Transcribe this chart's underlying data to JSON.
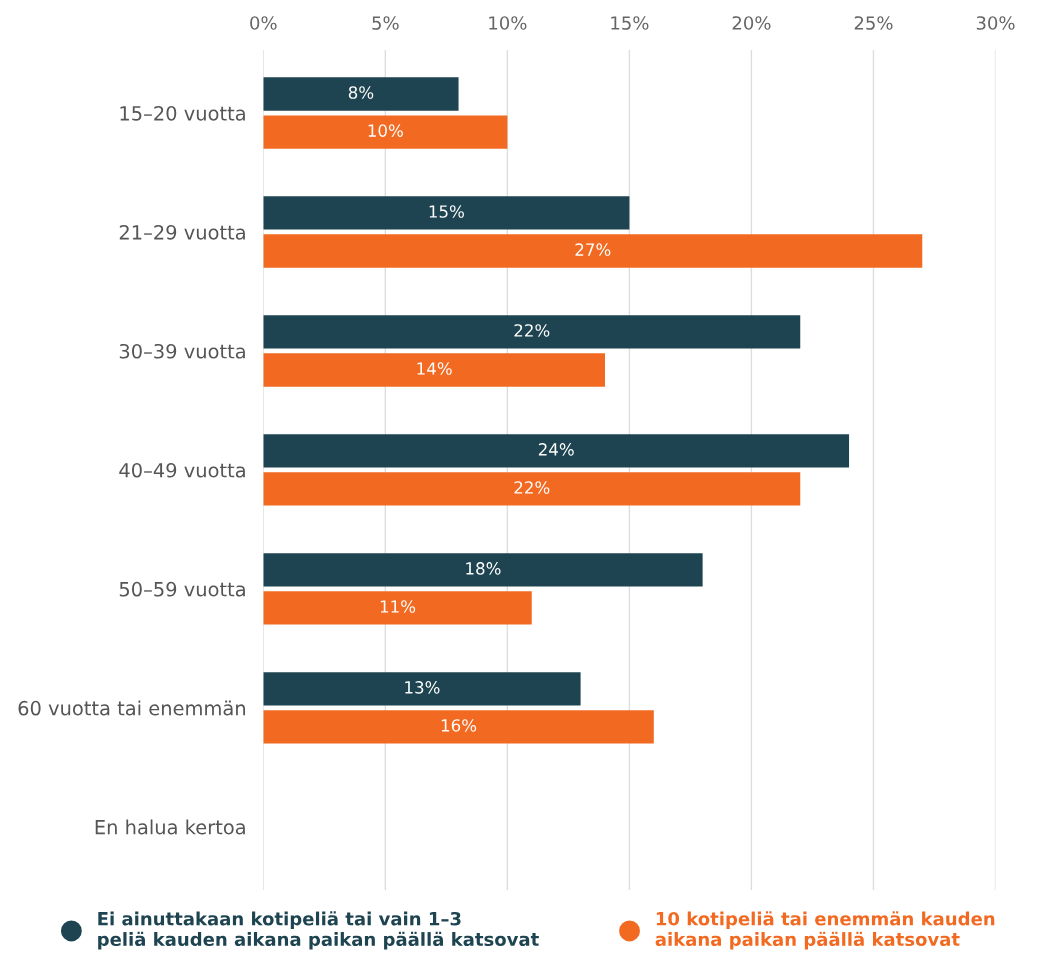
{
  "chart_data": {
    "type": "bar",
    "orientation": "horizontal",
    "categories": [
      "15–20 vuotta",
      "21–29 vuotta",
      "30–39 vuotta",
      "40–49 vuotta",
      "50–59 vuotta",
      "60 vuotta tai enemmän",
      "En halua kertoa"
    ],
    "series": [
      {
        "name": "Ei ainuttakaan kotipeliä tai vain 1–3 peliä kauden aikana paikan päällä katsovat",
        "color": "#1e4451",
        "values": [
          8,
          15,
          22,
          24,
          18,
          13,
          null
        ],
        "value_labels": [
          "8%",
          "15%",
          "22%",
          "24%",
          "18%",
          "13%",
          null
        ]
      },
      {
        "name": "10 kotipeliä tai enemmän kauden aikana paikan päällä katsovat",
        "color": "#f26a21",
        "values": [
          10,
          27,
          14,
          22,
          11,
          16,
          null
        ],
        "value_labels": [
          "10%",
          "27%",
          "14%",
          "22%",
          "11%",
          "16%",
          null
        ]
      }
    ],
    "xlim": [
      0,
      30
    ],
    "xticks": [
      {
        "value": 0,
        "label": "0%"
      },
      {
        "value": 5,
        "label": "5%"
      },
      {
        "value": 10,
        "label": "10%"
      },
      {
        "value": 15,
        "label": "15%"
      },
      {
        "value": 20,
        "label": "20%"
      },
      {
        "value": 25,
        "label": "25%"
      },
      {
        "value": 30,
        "label": "30%"
      }
    ],
    "grid": "x",
    "legend": "bottom"
  }
}
